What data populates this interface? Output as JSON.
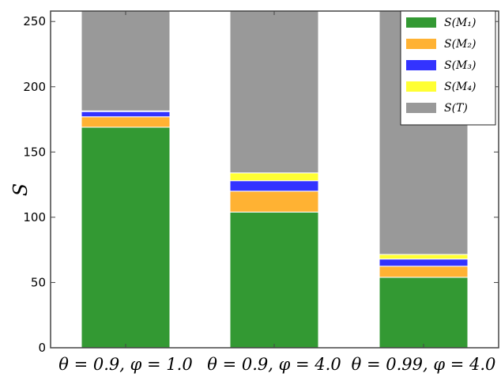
{
  "chart_data": {
    "type": "bar",
    "stacked": true,
    "categories": [
      "θ = 0.9, φ = 1.0",
      "θ = 0.9, φ = 4.0",
      "θ = 0.99, φ = 4.0"
    ],
    "series": [
      {
        "name": "S(M₁)",
        "color": "#339933",
        "values": [
          169,
          104,
          54
        ]
      },
      {
        "name": "S(M₂)",
        "color": "#ffb233",
        "values": [
          8,
          16,
          8.5
        ]
      },
      {
        "name": "S(M₃)",
        "color": "#3333ff",
        "values": [
          4,
          8,
          5.5
        ]
      },
      {
        "name": "S(M₄)",
        "color": "#ffff33",
        "values": [
          0.5,
          6,
          3.5
        ]
      },
      {
        "name": "S(T)",
        "color": "#999999",
        "values": [
          76.5,
          124,
          186.5
        ]
      }
    ],
    "ylabel": "S",
    "xlabel": "",
    "ylim": [
      0,
      258
    ],
    "yticks": [
      0,
      50,
      100,
      150,
      200,
      250
    ],
    "grid": false,
    "legend": "top-right"
  }
}
